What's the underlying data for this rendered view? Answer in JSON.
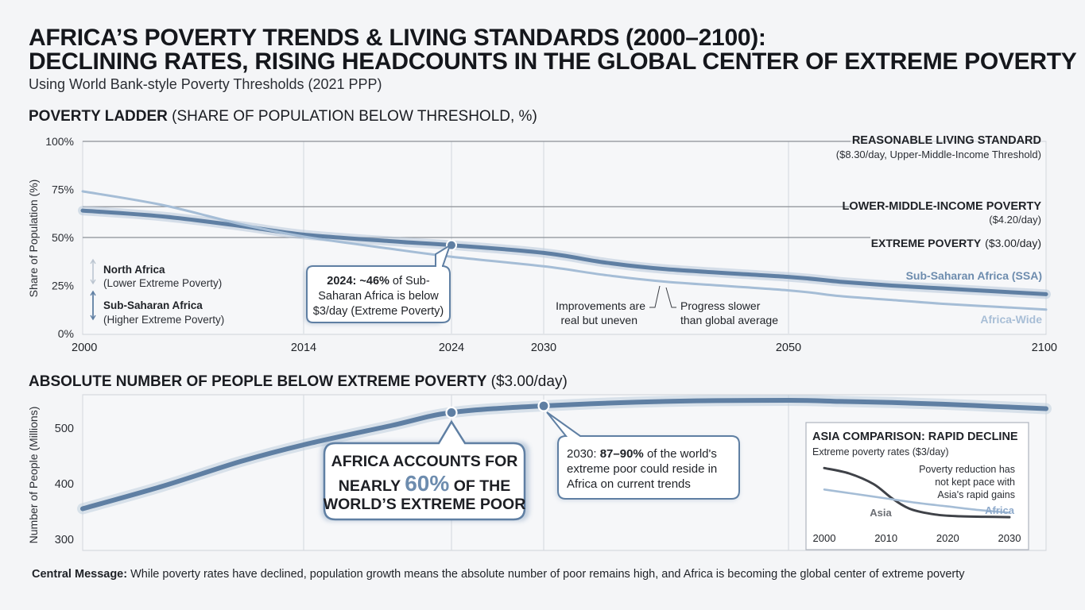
{
  "header": {
    "title_line1": "AFRICA’S POVERTY TRENDS & LIVING STANDARDS (2000–2100):",
    "title_line2": "DECLINING RATES, RISING HEADCOUNTS IN THE GLOBAL CENTER OF EXTREME POVERTY",
    "subtitle": "Using World Bank-style Poverty Thresholds (2021 PPP)"
  },
  "ladder_section": {
    "title_bold": "POVERTY LADDER",
    "title_rest": " (SHARE OF POPULATION BELOW THRESHOLD, %)"
  },
  "headcount_section": {
    "title_bold": "ABSOLUTE NUMBER OF PEOPLE BELOW EXTREME POVERTY",
    "title_rest": " ($3.00/day)"
  },
  "footer": {
    "label": "Central Message:",
    "text": " While poverty rates have declined, population growth means the absolute number of poor remains high, and Africa is becoming the global center of extreme poverty"
  },
  "chart_data": [
    {
      "type": "line",
      "title": "POVERTY LADDER (SHARE OF POPULATION BELOW THRESHOLD, %)",
      "ylabel": "Share of Population (%)",
      "xlabel": "",
      "xlim": [
        2000,
        2100
      ],
      "ylim": [
        0,
        100
      ],
      "x_ticks": [
        2000,
        2014,
        2024,
        2030,
        2050,
        2100
      ],
      "y_ticks": [
        0,
        25,
        50,
        75,
        100
      ],
      "y_tick_labels": [
        "0%",
        "25%",
        "50%",
        "75%",
        "100%"
      ],
      "thresholds": [
        {
          "name": "REASONABLE LIVING STANDARD",
          "note": "($8.30/day, Upper-Middle-Income Threshold)",
          "value": 100
        },
        {
          "name": "LOWER-MIDDLE-INCOME POVERTY",
          "note": "($4.20/day)",
          "value": 66
        },
        {
          "name": "EXTREME POVERTY",
          "note": "($3.00/day)",
          "value": 50
        }
      ],
      "series": [
        {
          "name": "Sub-Saharan Africa (SSA)",
          "color": "#5f7fa3",
          "x": [
            2000,
            2005,
            2010,
            2014,
            2020,
            2024,
            2030,
            2035,
            2040,
            2050,
            2060,
            2070,
            2080,
            2090,
            2100
          ],
          "y": [
            64,
            61,
            56,
            51.5,
            48,
            46,
            42,
            37,
            33.5,
            29.5,
            27,
            25,
            23.5,
            22,
            20.5
          ]
        },
        {
          "name": "Africa-Wide",
          "color": "#a5bdd6",
          "x": [
            2000,
            2005,
            2010,
            2014,
            2020,
            2024,
            2030,
            2035,
            2040,
            2050,
            2060,
            2070,
            2080,
            2090,
            2100
          ],
          "y": [
            74,
            67,
            57,
            50.5,
            44,
            40,
            35,
            30.5,
            27,
            22.5,
            19.5,
            17.5,
            15.5,
            14,
            12.5
          ]
        }
      ],
      "annotations": {
        "callout_2024_bold": "2024: ~46%",
        "callout_2024_a": " of Sub-",
        "callout_2024_b": "Saharan Africa is below",
        "callout_2024_c": "$3/day (Extreme Poverty)",
        "callout_2024_x": 2024,
        "callout_2024_y": 46,
        "improve_1": "Improvements are",
        "improve_2": "real but uneven",
        "progress_1": "Progress slower",
        "progress_2": "than global average",
        "na_label": "North Africa",
        "na_sub": "(Lower Extreme Poverty)",
        "ssa_label": "Sub-Saharan Africa",
        "ssa_sub": "(Higher Extreme Poverty)",
        "ssa_series_label": "Sub-Saharan Africa (SSA)",
        "aw_series_label": "Africa-Wide"
      }
    },
    {
      "type": "line",
      "title": "ABSOLUTE NUMBER OF PEOPLE BELOW EXTREME POVERTY ($3.00/day)",
      "ylabel": "Number of People (Millions)",
      "xlabel": "",
      "xlim": [
        2000,
        2100
      ],
      "ylim": [
        280,
        560
      ],
      "y_ticks": [
        300,
        400,
        500
      ],
      "series": [
        {
          "name": "Africa extreme poor (millions)",
          "color": "#5f7fa3",
          "x": [
            2000,
            2005,
            2010,
            2014,
            2020,
            2024,
            2030,
            2040,
            2050,
            2060,
            2070,
            2080,
            2090,
            2100
          ],
          "y": [
            355,
            395,
            440,
            470,
            505,
            528,
            540,
            548,
            550,
            548,
            546,
            543,
            539,
            535
          ]
        }
      ],
      "markers": [
        {
          "x": 2024,
          "y": 528
        },
        {
          "x": 2030,
          "y": 540
        }
      ],
      "annotations": {
        "africa_60_line1": "AFRICA ACCOUNTS FOR",
        "africa_60_nearly": "NEARLY ",
        "africa_60_pct": "60%",
        "africa_60_tail": " OF THE",
        "africa_60_line3": "WORLD’S EXTREME POOR",
        "c2030_pre": "2030: ",
        "c2030_bold": "87–90%",
        "c2030_a": " of the world's",
        "c2030_b": "extreme poor could reside in",
        "c2030_c": "Africa on current trends"
      }
    },
    {
      "type": "line",
      "title": "ASIA COMPARISON: RAPID DECLINE",
      "subtitle": "Extreme poverty rates ($3/day)",
      "x_ticks": [
        2000,
        2010,
        2020,
        2030
      ],
      "xlim": [
        2000,
        2030
      ],
      "ylim": [
        0,
        80
      ],
      "series": [
        {
          "name": "Asia",
          "color": "#3f4248",
          "x": [
            2000,
            2004,
            2008,
            2011,
            2014,
            2018,
            2022,
            2026,
            2030
          ],
          "y": [
            70,
            64,
            52,
            36,
            24,
            18,
            16,
            15.5,
            15
          ]
        },
        {
          "name": "Africa",
          "color": "#a5bdd6",
          "x": [
            2000,
            2005,
            2010,
            2015,
            2020,
            2025,
            2030
          ],
          "y": [
            46,
            41,
            36,
            31,
            27,
            23,
            20
          ]
        }
      ],
      "note_1": "Poverty reduction has",
      "note_2": "not kept pace with",
      "note_3": "Asia's rapid gains",
      "asia_label": "Asia",
      "africa_label": "Africa"
    }
  ]
}
